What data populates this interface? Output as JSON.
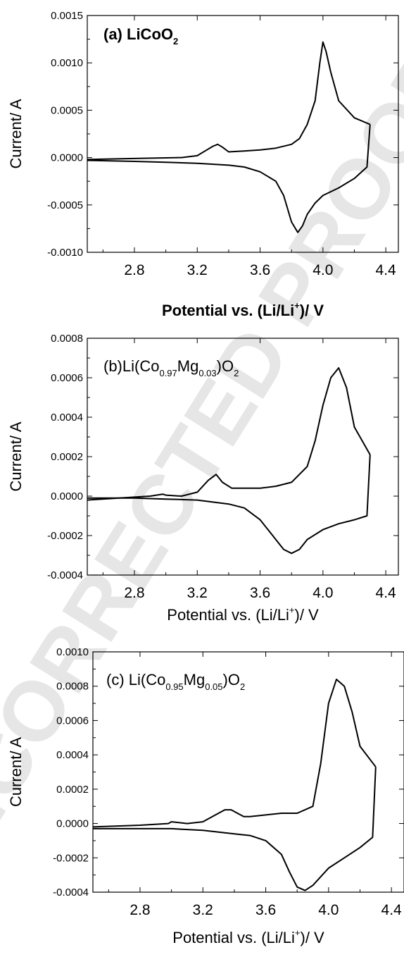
{
  "watermark": "UNCORRECTED PROOF",
  "chart_data": [
    {
      "type": "line",
      "title": "(a) LiCoO2",
      "title_parts": {
        "main": "(a) LiCoO",
        "sub": "2"
      },
      "xlabel": "Potential vs. (Li/Li+)/ V",
      "xlabel_parts": {
        "pre": "Potential vs. (Li/Li",
        "sup": "+",
        "post": ")/ V"
      },
      "ylabel": "Current/ A",
      "xlim": [
        2.5,
        4.48
      ],
      "ylim": [
        -0.001,
        0.0015
      ],
      "x_ticks": [
        "2.8",
        "3.2",
        "3.6",
        "4.0",
        "4.4"
      ],
      "y_ticks": [
        "0.0015",
        "0.0010",
        "0.0005",
        "0.0000",
        "-0.0005",
        "-0.0010"
      ],
      "series": [
        {
          "values": {
            "x": [
              2.5,
              2.8,
              3.1,
              3.2,
              3.26,
              3.3,
              3.33,
              3.36,
              3.4,
              3.5,
              3.6,
              3.7,
              3.8,
              3.85,
              3.9,
              3.95,
              3.98,
              4.0,
              4.02,
              4.05,
              4.1,
              4.2,
              4.3
            ],
            "y": [
              -2e-05,
              -1e-05,
              0.0,
              2e-05,
              8e-05,
              0.00012,
              0.00014,
              0.00011,
              6e-05,
              7e-05,
              8e-05,
              0.0001,
              0.00014,
              0.0002,
              0.00035,
              0.0006,
              0.001,
              0.00122,
              0.00112,
              0.0009,
              0.0006,
              0.00042,
              0.00035
            ]
          }
        },
        {
          "values": {
            "x": [
              4.3,
              4.28,
              4.2,
              4.1,
              4.0,
              3.95,
              3.9,
              3.87,
              3.84,
              3.8,
              3.75,
              3.7,
              3.6,
              3.5,
              3.4,
              3.2,
              3.0,
              2.8,
              2.5
            ],
            "y": [
              0.00035,
              -0.0001,
              -0.00022,
              -0.00032,
              -0.0004,
              -0.00048,
              -0.0006,
              -0.00072,
              -0.00079,
              -0.00068,
              -0.0004,
              -0.00025,
              -0.00015,
              -0.0001,
              -8e-05,
              -6e-05,
              -5e-05,
              -4e-05,
              -3e-05
            ]
          }
        }
      ]
    },
    {
      "type": "line",
      "title": "(b)Li(Co0.97Mg0.03)O2",
      "title_parts": {
        "a": "(b)Li(Co",
        "s1": "0.97",
        "b": "Mg",
        "s2": "0.03",
        "c": ")O",
        "s3": "2"
      },
      "xlabel": "Potential vs. (Li/Li+)/ V",
      "xlabel_parts": {
        "pre": "Potential vs. (Li/Li",
        "sup": "+",
        "post": ")/ V"
      },
      "ylabel": "Current/ A",
      "xlim": [
        2.5,
        4.48
      ],
      "ylim": [
        -0.0004,
        0.0008
      ],
      "x_ticks": [
        "2.8",
        "3.2",
        "3.6",
        "4.0",
        "4.4"
      ],
      "y_ticks": [
        "0.0008",
        "0.0006",
        "0.0004",
        "0.0002",
        "0.0000",
        "-0.0002",
        "-0.0004"
      ],
      "series": [
        {
          "values": {
            "x": [
              2.5,
              2.9,
              2.98,
              3.0,
              3.1,
              3.2,
              3.27,
              3.32,
              3.36,
              3.42,
              3.5,
              3.6,
              3.7,
              3.8,
              3.9,
              3.95,
              4.0,
              4.05,
              4.1,
              4.15,
              4.2,
              4.3
            ],
            "y": [
              -2e-05,
              0.0,
              1e-05,
              5e-06,
              0.0,
              2e-05,
              8e-05,
              0.00011,
              7e-05,
              4e-05,
              4e-05,
              4e-05,
              5e-05,
              7e-05,
              0.00015,
              0.00028,
              0.00046,
              0.0006,
              0.00065,
              0.00055,
              0.00035,
              0.00021
            ]
          }
        },
        {
          "values": {
            "x": [
              4.3,
              4.28,
              4.2,
              4.1,
              4.0,
              3.9,
              3.85,
              3.8,
              3.75,
              3.7,
              3.6,
              3.5,
              3.4,
              3.2,
              3.0,
              2.8,
              2.5
            ],
            "y": [
              0.00021,
              -0.0001,
              -0.00012,
              -0.00014,
              -0.00017,
              -0.00022,
              -0.00027,
              -0.00029,
              -0.00027,
              -0.00022,
              -0.00012,
              -6e-05,
              -4e-05,
              -2e-05,
              -1.5e-05,
              -1e-05,
              -1e-05
            ]
          }
        }
      ]
    },
    {
      "type": "line",
      "title": "(c) Li(Co0.95Mg0.05)O2",
      "title_parts": {
        "a": "(c) Li(Co",
        "s1": "0.95",
        "b": "Mg",
        "s2": "0.05",
        "c": ")O",
        "s3": "2"
      },
      "xlabel": "Potential vs. (Li/Li+)/ V",
      "xlabel_parts": {
        "pre": "Potential vs. (Li/Li",
        "sup": "+",
        "post": ")/ V"
      },
      "ylabel": "Current/ A",
      "xlim": [
        2.5,
        4.48
      ],
      "ylim": [
        -0.0004,
        0.001
      ],
      "x_ticks": [
        "2.8",
        "3.2",
        "3.6",
        "4.0",
        "4.4"
      ],
      "y_ticks": [
        "0.0010",
        "0.0008",
        "0.0006",
        "0.0004",
        "0.0002",
        "0.0000",
        "-0.0002",
        "-0.0004"
      ],
      "series": [
        {
          "values": {
            "x": [
              2.5,
              2.8,
              2.98,
              3.0,
              3.1,
              3.2,
              3.28,
              3.34,
              3.38,
              3.42,
              3.46,
              3.5,
              3.6,
              3.7,
              3.8,
              3.9,
              3.95,
              4.0,
              4.05,
              4.1,
              4.15,
              4.2,
              4.3
            ],
            "y": [
              -2e-05,
              -1e-05,
              0.0,
              1e-05,
              0.0,
              1e-05,
              5e-05,
              8e-05,
              8e-05,
              6e-05,
              4e-05,
              4e-05,
              5e-05,
              6e-05,
              6e-05,
              0.0001,
              0.00035,
              0.0007,
              0.00084,
              0.0008,
              0.00065,
              0.00045,
              0.00033
            ]
          }
        },
        {
          "values": {
            "x": [
              4.3,
              4.28,
              4.2,
              4.1,
              4.0,
              3.95,
              3.9,
              3.85,
              3.8,
              3.75,
              3.7,
              3.6,
              3.5,
              3.4,
              3.3,
              3.2,
              3.0,
              2.8,
              2.5
            ],
            "y": [
              0.00033,
              -8e-05,
              -0.00014,
              -0.0002,
              -0.00026,
              -0.00031,
              -0.00036,
              -0.00039,
              -0.00037,
              -0.00028,
              -0.00018,
              -0.0001,
              -7e-05,
              -6e-05,
              -5e-05,
              -4e-05,
              -3e-05,
              -3e-05,
              -3e-05
            ]
          }
        }
      ]
    }
  ]
}
